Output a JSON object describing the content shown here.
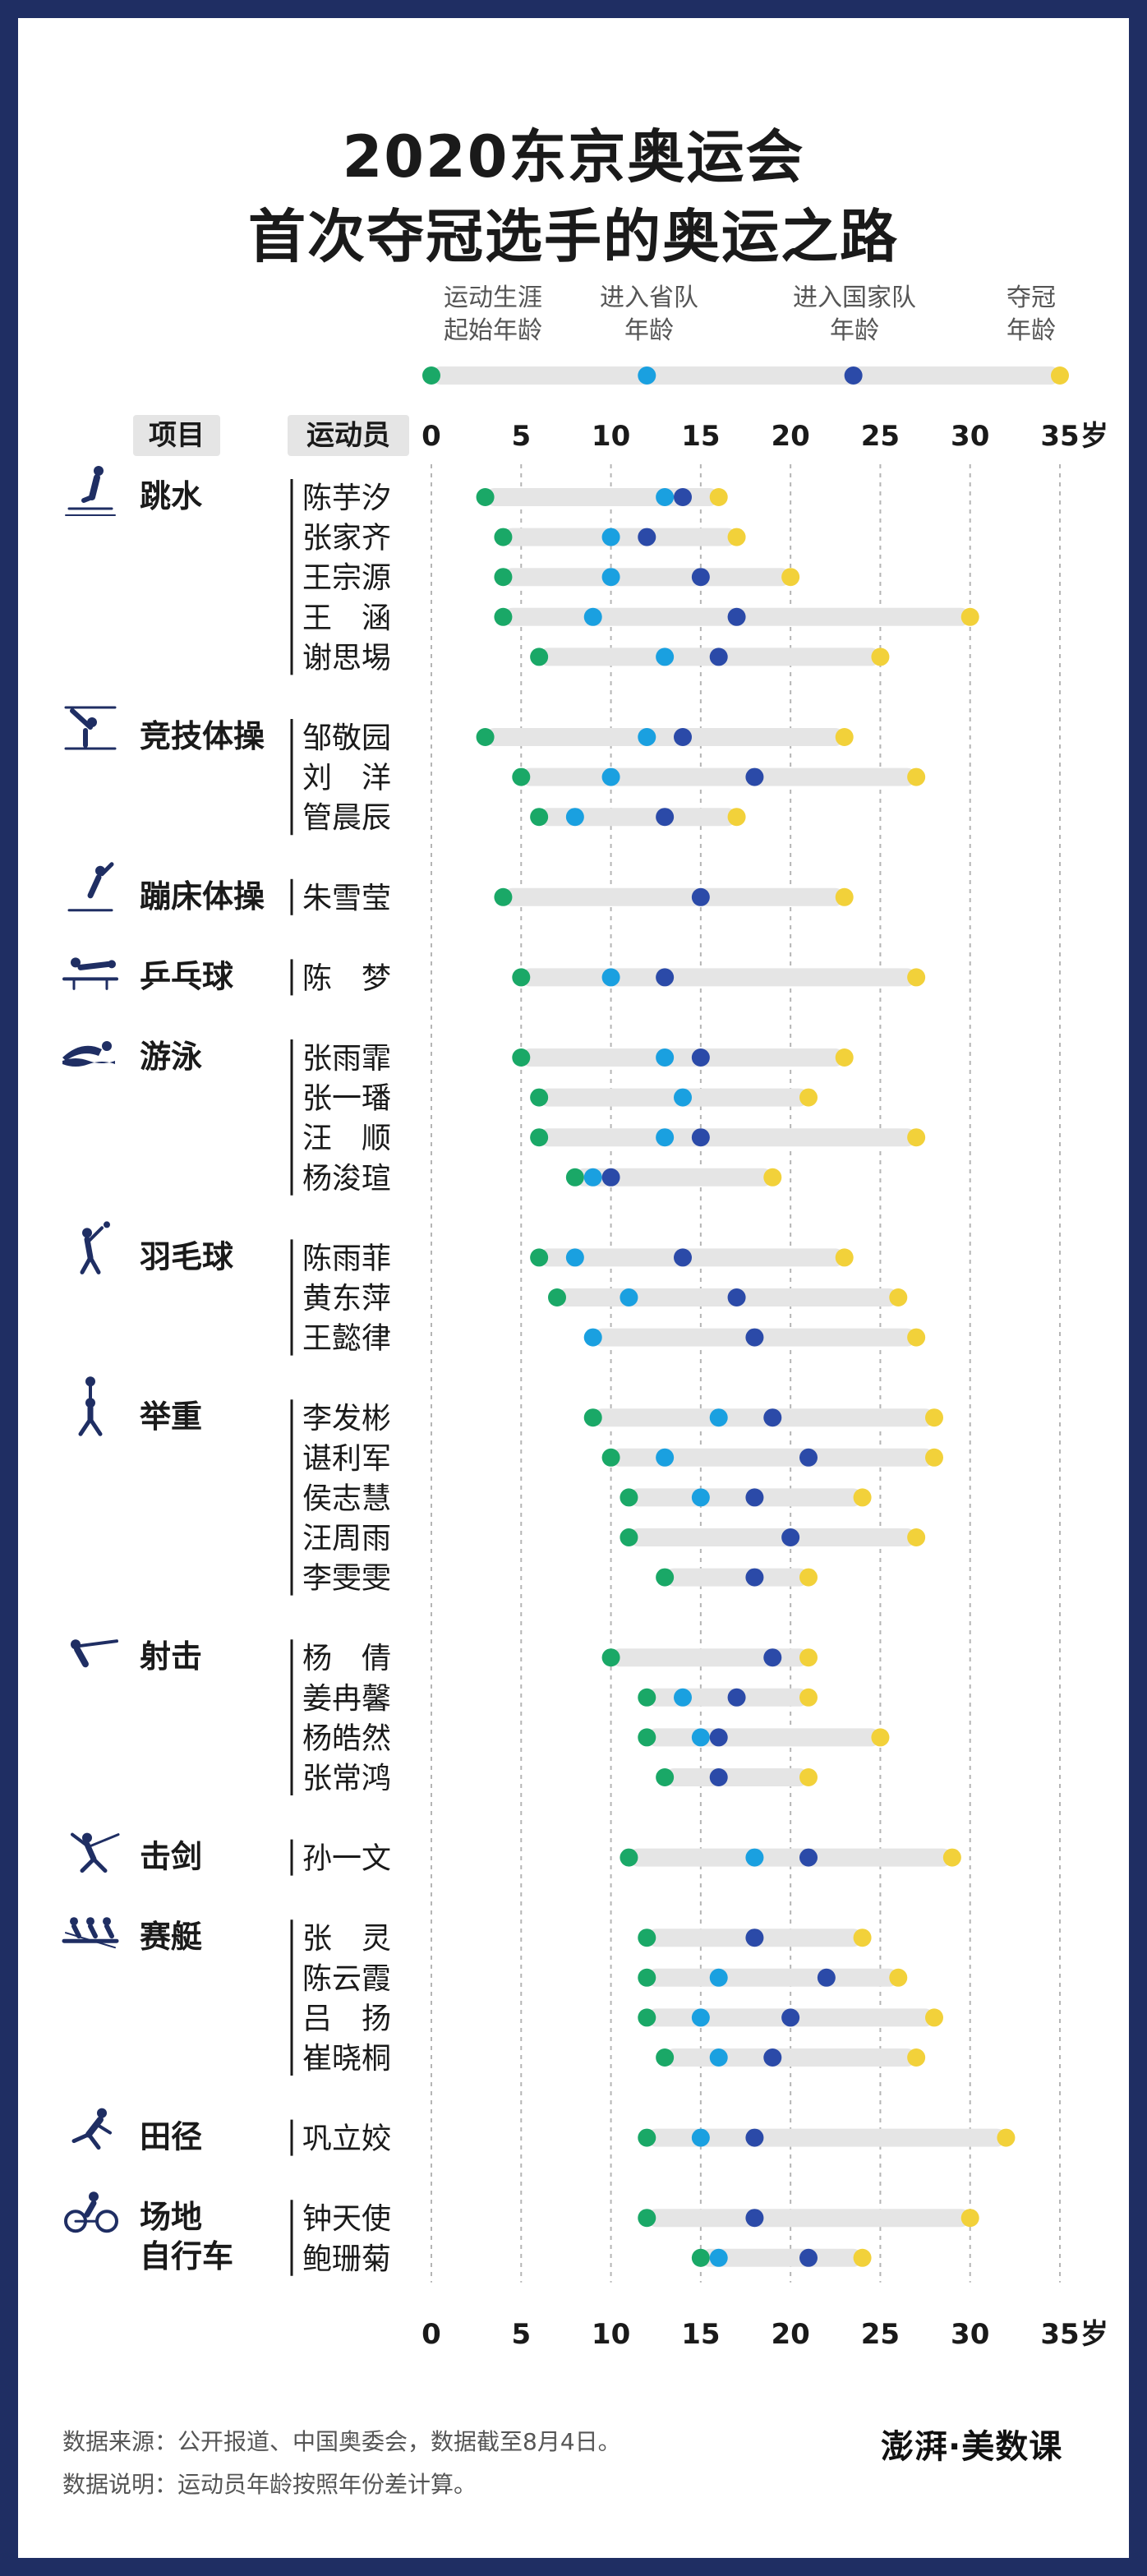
{
  "title": {
    "line1": "2020东京奥运会",
    "line2": "首次夺冠选手的奥运之路"
  },
  "legend": {
    "start": "运动生涯\n起始年龄",
    "province": "进入省队\n年龄",
    "national": "进入国家队\n年龄",
    "champion": "夺冠\n年龄"
  },
  "headers": {
    "sport": "项目",
    "athlete": "运动员",
    "unit": "岁"
  },
  "footer": {
    "source": "数据来源：公开报道、中国奥委会，数据截至8月4日。",
    "note": "数据说明：运动员年龄按照年份差计算。"
  },
  "logo": "澎湃·美数课",
  "colors": {
    "start": "#1aa867",
    "province": "#1aa0e0",
    "national": "#2b4aa8",
    "champion": "#f2d13a",
    "bar": "#e5e5e5",
    "icon": "#1f2e63"
  },
  "chart_data": {
    "type": "dot-range",
    "xlim": [
      0,
      35
    ],
    "x_ticks": [
      0,
      5,
      10,
      15,
      20,
      25,
      30,
      35
    ],
    "series": [
      {
        "name": "运动生涯起始年龄",
        "key": "start"
      },
      {
        "name": "进入省队年龄",
        "key": "province"
      },
      {
        "name": "进入国家队年龄",
        "key": "national"
      },
      {
        "name": "夺冠年龄",
        "key": "champion"
      }
    ],
    "groups": [
      {
        "sport": "跳水",
        "icon": "diving-icon",
        "athletes": [
          {
            "name": "陈芋汐",
            "start": 3,
            "province": 13,
            "national": 14,
            "champion": 16
          },
          {
            "name": "张家齐",
            "start": 4,
            "province": 10,
            "national": 12,
            "champion": 17
          },
          {
            "name": "王宗源",
            "start": 4,
            "province": 10,
            "national": 15,
            "champion": 20
          },
          {
            "name": "王　涵",
            "start": 4,
            "province": 9,
            "national": 17,
            "champion": 30
          },
          {
            "name": "谢思埸",
            "start": 6,
            "province": 13,
            "national": 16,
            "champion": 25
          }
        ]
      },
      {
        "sport": "竞技体操",
        "icon": "gymnastics-icon",
        "athletes": [
          {
            "name": "邹敬园",
            "start": 3,
            "province": 12,
            "national": 14,
            "champion": 23
          },
          {
            "name": "刘　洋",
            "start": 5,
            "province": 10,
            "national": 18,
            "champion": 27
          },
          {
            "name": "管晨辰",
            "start": 6,
            "province": 8,
            "national": 13,
            "champion": 17
          }
        ]
      },
      {
        "sport": "蹦床体操",
        "icon": "trampoline-icon",
        "athletes": [
          {
            "name": "朱雪莹",
            "start": 4,
            "province": null,
            "national": 15,
            "champion": 23
          }
        ]
      },
      {
        "sport": "乒乓球",
        "icon": "table-tennis-icon",
        "athletes": [
          {
            "name": "陈　梦",
            "start": 5,
            "province": 10,
            "national": 13,
            "champion": 27
          }
        ]
      },
      {
        "sport": "游泳",
        "icon": "swimming-icon",
        "athletes": [
          {
            "name": "张雨霏",
            "start": 5,
            "province": 13,
            "national": 15,
            "champion": 23
          },
          {
            "name": "张一璠",
            "start": 6,
            "province": 14,
            "national": null,
            "champion": 21
          },
          {
            "name": "汪　顺",
            "start": 6,
            "province": 13,
            "national": 15,
            "champion": 27
          },
          {
            "name": "杨浚瑄",
            "start": 8,
            "province": 9,
            "national": 10,
            "champion": 19
          }
        ]
      },
      {
        "sport": "羽毛球",
        "icon": "badminton-icon",
        "athletes": [
          {
            "name": "陈雨菲",
            "start": 6,
            "province": 8,
            "national": 14,
            "champion": 23
          },
          {
            "name": "黄东萍",
            "start": 7,
            "province": 11,
            "national": 17,
            "champion": 26
          },
          {
            "name": "王懿律",
            "start": null,
            "province": 9,
            "national": 18,
            "champion": 27
          }
        ]
      },
      {
        "sport": "举重",
        "icon": "weightlifting-icon",
        "athletes": [
          {
            "name": "李发彬",
            "start": 9,
            "province": 16,
            "national": 19,
            "champion": 28
          },
          {
            "name": "谌利军",
            "start": 10,
            "province": 13,
            "national": 21,
            "champion": 28
          },
          {
            "name": "侯志慧",
            "start": 11,
            "province": 15,
            "national": 18,
            "champion": 24
          },
          {
            "name": "汪周雨",
            "start": 11,
            "province": null,
            "national": 20,
            "champion": 27
          },
          {
            "name": "李雯雯",
            "start": 13,
            "province": null,
            "national": 18,
            "champion": 21
          }
        ]
      },
      {
        "sport": "射击",
        "icon": "shooting-icon",
        "athletes": [
          {
            "name": "杨　倩",
            "start": 10,
            "province": null,
            "national": 19,
            "champion": 21
          },
          {
            "name": "姜冉馨",
            "start": 12,
            "province": 14,
            "national": 17,
            "champion": 21
          },
          {
            "name": "杨皓然",
            "start": 12,
            "province": 15,
            "national": 16,
            "champion": 25
          },
          {
            "name": "张常鸿",
            "start": 13,
            "province": null,
            "national": 16,
            "champion": 21
          }
        ]
      },
      {
        "sport": "击剑",
        "icon": "fencing-icon",
        "athletes": [
          {
            "name": "孙一文",
            "start": 11,
            "province": 18,
            "national": 21,
            "champion": 29
          }
        ]
      },
      {
        "sport": "赛艇",
        "icon": "rowing-icon",
        "athletes": [
          {
            "name": "张　灵",
            "start": 12,
            "province": null,
            "national": 18,
            "champion": 24
          },
          {
            "name": "陈云霞",
            "start": 12,
            "province": 16,
            "national": 22,
            "champion": 26
          },
          {
            "name": "吕　扬",
            "start": 12,
            "province": 15,
            "national": 20,
            "champion": 28
          },
          {
            "name": "崔晓桐",
            "start": 13,
            "province": 16,
            "national": 19,
            "champion": 27
          }
        ]
      },
      {
        "sport": "田径",
        "icon": "athletics-icon",
        "athletes": [
          {
            "name": "巩立姣",
            "start": 12,
            "province": 15,
            "national": 18,
            "champion": 32
          }
        ]
      },
      {
        "sport": "场地\n自行车",
        "icon": "cycling-icon",
        "athletes": [
          {
            "name": "钟天使",
            "start": 12,
            "province": null,
            "national": 18,
            "champion": 30
          },
          {
            "name": "鲍珊菊",
            "start": 15,
            "province": 16,
            "national": 21,
            "champion": 24
          }
        ]
      }
    ]
  }
}
